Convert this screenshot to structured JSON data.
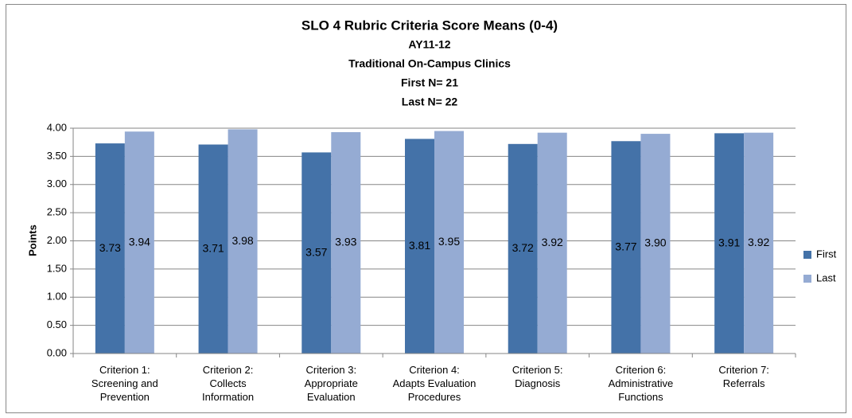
{
  "chart_data": {
    "type": "bar",
    "title": "SLO 4 Rubric Criteria Score Means (0-4)",
    "subtitle": [
      "AY11-12",
      "Traditional On-Campus Clinics",
      "First N= 21",
      "Last N= 22"
    ],
    "y_label": "Points",
    "categories": [
      "Criterion 1:\nScreening and\nPrevention",
      "Criterion 2:\nCollects\nInformation",
      "Criterion 3:\nAppropriate\nEvaluation",
      "Criterion 4:\nAdapts Evaluation\nProcedures",
      "Criterion 5:\nDiagnosis",
      "Criterion 6:\nAdministrative\nFunctions",
      "Criterion 7:\nReferrals"
    ],
    "series": [
      {
        "name": "First",
        "color": "#4472a8",
        "values": [
          3.73,
          3.71,
          3.57,
          3.81,
          3.72,
          3.77,
          3.91
        ],
        "value_labels": [
          "3.73",
          "3.71",
          "3.57",
          "3.81",
          "3.72",
          "3.77",
          "3.91"
        ]
      },
      {
        "name": "Last",
        "color": "#95abd3",
        "values": [
          3.94,
          3.98,
          3.93,
          3.95,
          3.92,
          3.9,
          3.92
        ],
        "value_labels": [
          "3.94",
          "3.98",
          "3.93",
          "3.95",
          "3.92",
          "3.90",
          "3.92"
        ]
      }
    ],
    "ylim": [
      0,
      4
    ],
    "yticks": [
      {
        "value": 0,
        "label": "0.00"
      },
      {
        "value": 0.5,
        "label": "0.50"
      },
      {
        "value": 1,
        "label": "1.00"
      },
      {
        "value": 1.5,
        "label": "1.50"
      },
      {
        "value": 2,
        "label": "2.00"
      },
      {
        "value": 2.5,
        "label": "2.50"
      },
      {
        "value": 3,
        "label": "3.00"
      },
      {
        "value": 3.5,
        "label": "3.50"
      },
      {
        "value": 4,
        "label": "4.00"
      }
    ],
    "grid": true,
    "legend": "right"
  }
}
